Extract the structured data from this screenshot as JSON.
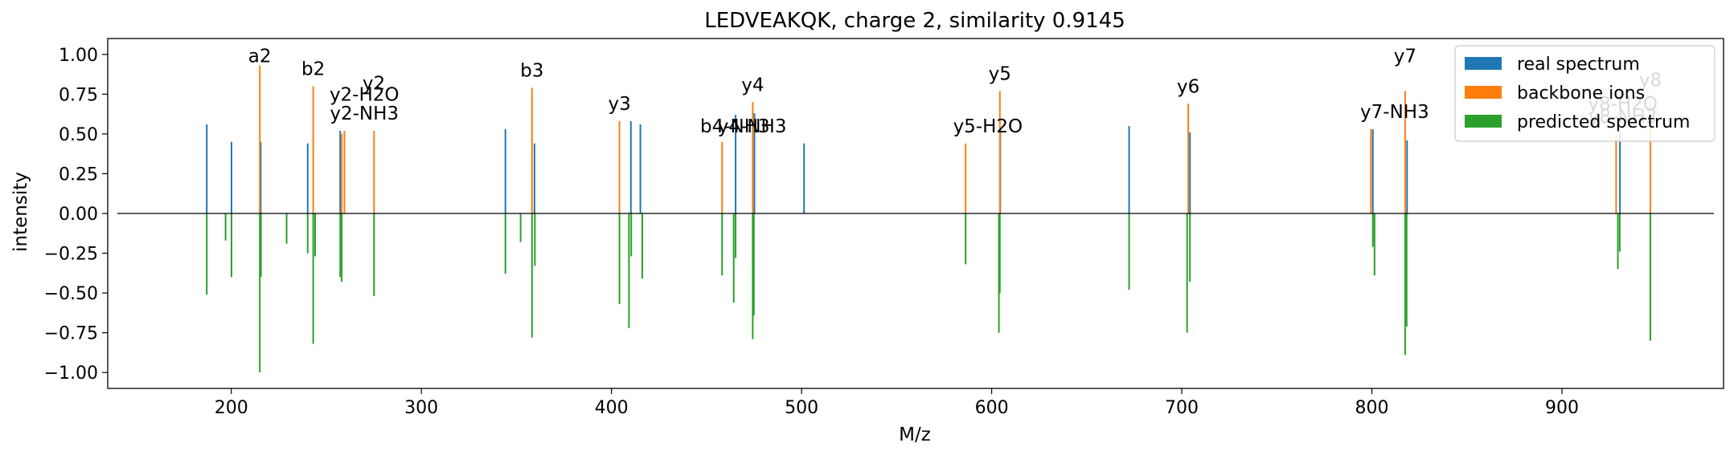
{
  "chart_data": {
    "type": "bar",
    "title": "LEDVEAKQK, charge 2, similarity 0.9145",
    "xlabel": "M/z",
    "ylabel": "intensity",
    "xlim": [
      135,
      985
    ],
    "ylim": [
      -1.1,
      1.1
    ],
    "xticks": [
      200,
      300,
      400,
      500,
      600,
      700,
      800,
      900
    ],
    "yticks": [
      1.0,
      0.75,
      0.5,
      0.25,
      0.0,
      -0.25,
      -0.5,
      -0.75,
      -1.0
    ],
    "ytick_labels": [
      "1.00",
      "0.75",
      "0.50",
      "0.25",
      "0.00",
      "−0.25",
      "−0.50",
      "−0.75",
      "−1.00"
    ],
    "grid": false,
    "legend_position": "top-right",
    "colors": {
      "real spectrum": "#1f77b4",
      "backbone ions": "#ff7f0e",
      "predicted spectrum": "#2ca02c",
      "baseline": "#000000"
    },
    "series": [
      {
        "name": "real spectrum",
        "x": [
          187.1,
          200.1,
          215.5,
          240.2,
          257.3,
          344.2,
          359.5,
          410.2,
          415.2,
          465.3,
          475.2,
          501.3,
          604.5,
          672.3,
          704.3,
          800.5,
          818.5,
          930.5
        ],
        "values": [
          0.56,
          0.45,
          0.45,
          0.44,
          0.52,
          0.53,
          0.44,
          0.58,
          0.56,
          0.62,
          0.63,
          0.44,
          0.54,
          0.55,
          0.51,
          0.53,
          0.46,
          0.52
        ]
      },
      {
        "name": "backbone ions",
        "x": [
          215.0,
          243.1,
          258.1,
          259.5,
          275.1,
          358.2,
          404.2,
          458.2,
          474.3,
          586.3,
          604.3,
          703.4,
          799.5,
          817.5,
          928.5,
          946.5
        ],
        "values": [
          0.93,
          0.8,
          0.5,
          0.52,
          0.52,
          0.79,
          0.58,
          0.45,
          0.7,
          0.44,
          0.77,
          0.69,
          0.53,
          0.77,
          0.52,
          0.75
        ]
      },
      {
        "name": "predicted spectrum",
        "x": [
          187.1,
          197.0,
          200.1,
          215.0,
          215.6,
          229.1,
          240.2,
          243.1,
          244.1,
          257.3,
          258.1,
          275.1,
          344.2,
          352.2,
          358.2,
          359.7,
          404.2,
          409.2,
          410.4,
          416.2,
          458.2,
          464.3,
          465.3,
          474.3,
          474.9,
          586.3,
          603.8,
          604.3,
          672.3,
          702.8,
          704.3,
          800.5,
          801.4,
          817.5,
          818.3,
          929.4,
          930.4,
          946.5
        ],
        "values": [
          -0.51,
          -0.17,
          -0.4,
          -1.0,
          -0.4,
          -0.19,
          -0.25,
          -0.82,
          -0.27,
          -0.4,
          -0.43,
          -0.52,
          -0.38,
          -0.18,
          -0.78,
          -0.33,
          -0.57,
          -0.72,
          -0.27,
          -0.41,
          -0.39,
          -0.56,
          -0.28,
          -0.79,
          -0.64,
          -0.32,
          -0.75,
          -0.5,
          -0.48,
          -0.75,
          -0.43,
          -0.21,
          -0.39,
          -0.89,
          -0.71,
          -0.35,
          -0.24,
          -0.8
        ]
      }
    ],
    "annotations": [
      {
        "text": "a2",
        "x": 215.0,
        "y": 0.95
      },
      {
        "text": "b2",
        "x": 243.1,
        "y": 0.87
      },
      {
        "text": "y2",
        "x": 275.0,
        "y": 0.78
      },
      {
        "text": "y2-H2O",
        "x": 270.0,
        "y": 0.71
      },
      {
        "text": "y2-NH3",
        "x": 270.0,
        "y": 0.59
      },
      {
        "text": "b3",
        "x": 358.2,
        "y": 0.86
      },
      {
        "text": "y3",
        "x": 404.2,
        "y": 0.65
      },
      {
        "text": "b4-NH3",
        "x": 465.0,
        "y": 0.51
      },
      {
        "text": "y4-NH3",
        "x": 474.0,
        "y": 0.51
      },
      {
        "text": "y4",
        "x": 474.3,
        "y": 0.77
      },
      {
        "text": "y5",
        "x": 604.3,
        "y": 0.84
      },
      {
        "text": "y5-H2O",
        "x": 598.0,
        "y": 0.51
      },
      {
        "text": "y6",
        "x": 703.4,
        "y": 0.76
      },
      {
        "text": "y7-NH3",
        "x": 812.0,
        "y": 0.6
      },
      {
        "text": "y7",
        "x": 817.5,
        "y": 0.95
      },
      {
        "text": "y8",
        "x": 946.5,
        "y": 0.8
      },
      {
        "text": "y8-H2O",
        "x": 932.0,
        "y": 0.65
      },
      {
        "text": "y8-NH3",
        "x": 932.0,
        "y": 0.57
      }
    ]
  }
}
